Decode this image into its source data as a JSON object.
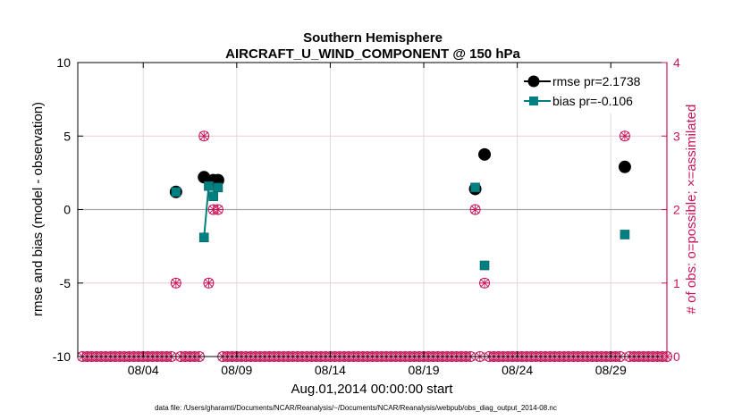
{
  "chart_data": {
    "type": "scatter",
    "title": "Southern Hemisphere",
    "subtitle": "AIRCRAFT_U_WIND_COMPONENT @ 150 hPa",
    "xlabel": "Aug.01,2014 00:00:00 start",
    "ylabel": "rmse and bias (model - observation)",
    "y2label": "# of obs: o=possible; ×=assimilated",
    "footer": "data file: /Users/gharamti/Documents/NCAR/Reanalysis/~/Documents/NCAR/Reanalysis/webpub/obs_diag_output_2014-08.nc",
    "xlim": [
      0.0,
      31.5
    ],
    "ylim": [
      -10,
      10
    ],
    "y2lim": [
      0,
      4
    ],
    "xticks": [
      3.5,
      8.5,
      13.5,
      18.5,
      23.5,
      28.5
    ],
    "xtick_labels": [
      "08/04",
      "08/09",
      "08/14",
      "08/19",
      "08/24",
      "08/29"
    ],
    "yticks": [
      -10,
      -5,
      0,
      5,
      10
    ],
    "ytick_labels": [
      "-10",
      "-5",
      "0",
      "5",
      "10"
    ],
    "y2ticks": [
      0,
      1,
      2,
      3,
      4
    ],
    "y2tick_labels": [
      "0",
      "1",
      "2",
      "3",
      "4"
    ],
    "legend_position": "top-right",
    "series": [
      {
        "name": "rmse pr=2.1738",
        "color": "#000000",
        "marker": "circle",
        "points": [
          [
            5.25,
            1.2
          ],
          [
            6.75,
            2.2
          ],
          [
            7.25,
            2.0
          ],
          [
            7.5,
            2.0
          ],
          [
            21.25,
            1.4
          ],
          [
            21.75,
            3.75
          ],
          [
            29.25,
            2.9
          ]
        ],
        "line_segments": [
          [
            6.75,
            7.5
          ]
        ]
      },
      {
        "name": "bias pr=-0.106",
        "color": "#008080",
        "marker": "square",
        "points": [
          [
            5.25,
            1.2
          ],
          [
            6.75,
            -1.9
          ],
          [
            7.0,
            1.6
          ],
          [
            7.25,
            0.9
          ],
          [
            7.5,
            1.5
          ],
          [
            21.25,
            1.5
          ],
          [
            21.75,
            -3.8
          ],
          [
            29.25,
            -1.7
          ]
        ],
        "line_segments": [
          [
            6.75,
            7.0
          ]
        ]
      }
    ],
    "obs_count": {
      "color": "#c8155a",
      "possible": [
        [
          5.25,
          1
        ],
        [
          6.75,
          3
        ],
        [
          7.0,
          1
        ],
        [
          7.25,
          2
        ],
        [
          7.5,
          2
        ],
        [
          21.25,
          2
        ],
        [
          21.75,
          1
        ],
        [
          29.25,
          3
        ]
      ],
      "assimilated": [
        [
          5.25,
          1
        ],
        [
          6.75,
          3
        ],
        [
          7.0,
          1
        ],
        [
          7.25,
          2
        ],
        [
          7.5,
          2
        ],
        [
          21.25,
          2
        ],
        [
          21.75,
          1
        ],
        [
          29.25,
          3
        ]
      ],
      "zero_count_step": 0.25
    }
  }
}
